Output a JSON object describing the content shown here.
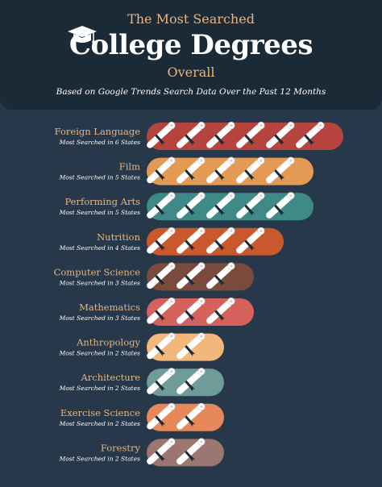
{
  "header": {
    "line1": "The Most Searched",
    "line2": "College Degrees",
    "line3": "Overall",
    "note": "Based on Google Trends Search Data Over the Past 12 Months"
  },
  "icon": "graduation-cap-icon",
  "chart_data": {
    "type": "bar",
    "unit_icon": "diploma-scroll-icon",
    "categories": [
      "Foreign Language",
      "Film",
      "Performing Arts",
      "Nutrition",
      "Computer Science",
      "Mathematics",
      "Anthropology",
      "Architecture",
      "Exercise Science",
      "Forestry"
    ],
    "values": [
      6,
      5,
      5,
      4,
      3,
      3,
      2,
      2,
      2,
      2
    ],
    "subtitles": [
      "Most Searched in 6 States",
      "Most Searched in 5 States",
      "Most Searched in 5 States",
      "Most Searched in 4 States",
      "Most Searched in 3 States",
      "Most Searched in 3 States",
      "Most Searched in 2 States",
      "Most Searched in 2 States",
      "Most Searched in 2 States",
      "Most Searched in 2 States"
    ],
    "colors": [
      "#b5443f",
      "#e39a55",
      "#3f8a86",
      "#c9582d",
      "#7a4a3c",
      "#d4615b",
      "#f2b77a",
      "#6f9c98",
      "#e7885a",
      "#9c7670"
    ]
  }
}
